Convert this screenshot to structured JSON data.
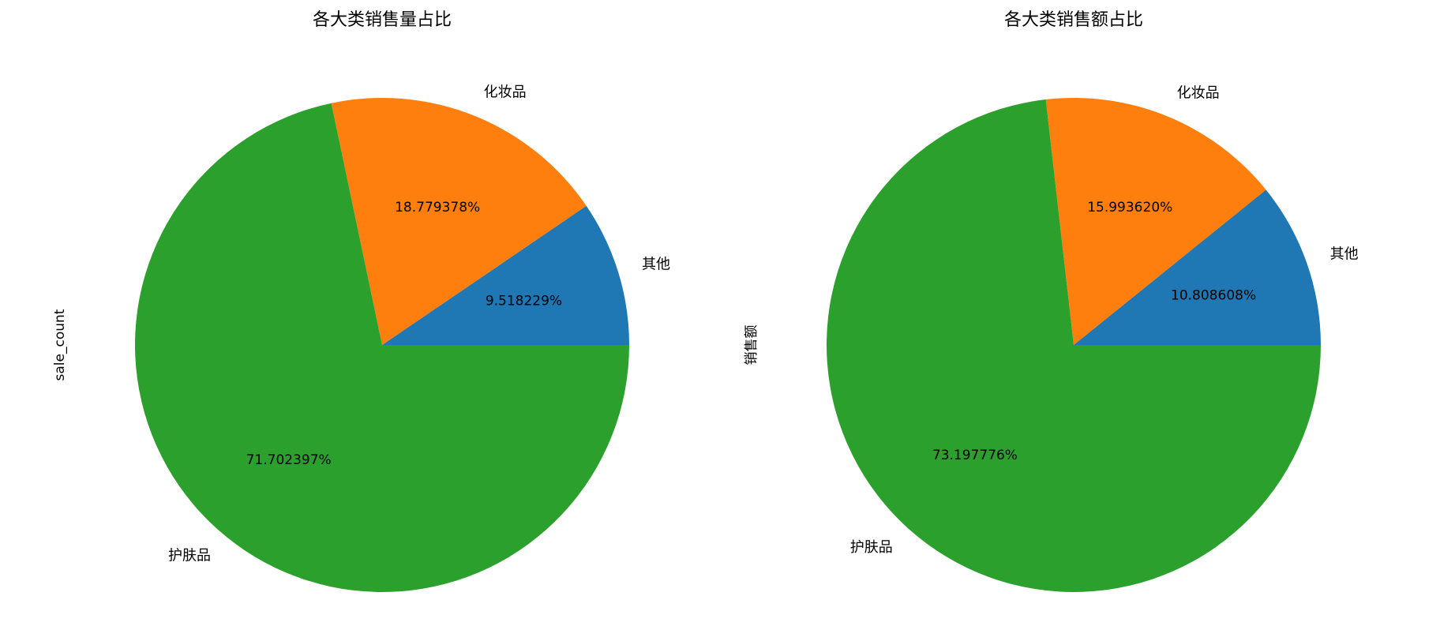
{
  "chart_data": [
    {
      "type": "pie",
      "title": "各大类销售量占比",
      "ylabel": "sale_count",
      "categories": [
        "其他",
        "化妆品",
        "护肤品"
      ],
      "values": [
        9.518229,
        18.779378,
        71.702397
      ],
      "value_labels": [
        "9.518229%",
        "18.779378%",
        "71.702397%"
      ],
      "colors": [
        "#1f77b4",
        "#ff7f0e",
        "#2ca02c"
      ]
    },
    {
      "type": "pie",
      "title": "各大类销售额占比",
      "ylabel": "销售额",
      "categories": [
        "其他",
        "化妆品",
        "护肤品"
      ],
      "values": [
        10.808608,
        15.99362,
        73.197776
      ],
      "value_labels": [
        "10.808608%",
        "15.993620%",
        "73.197776%"
      ],
      "colors": [
        "#1f77b4",
        "#ff7f0e",
        "#2ca02c"
      ]
    }
  ]
}
